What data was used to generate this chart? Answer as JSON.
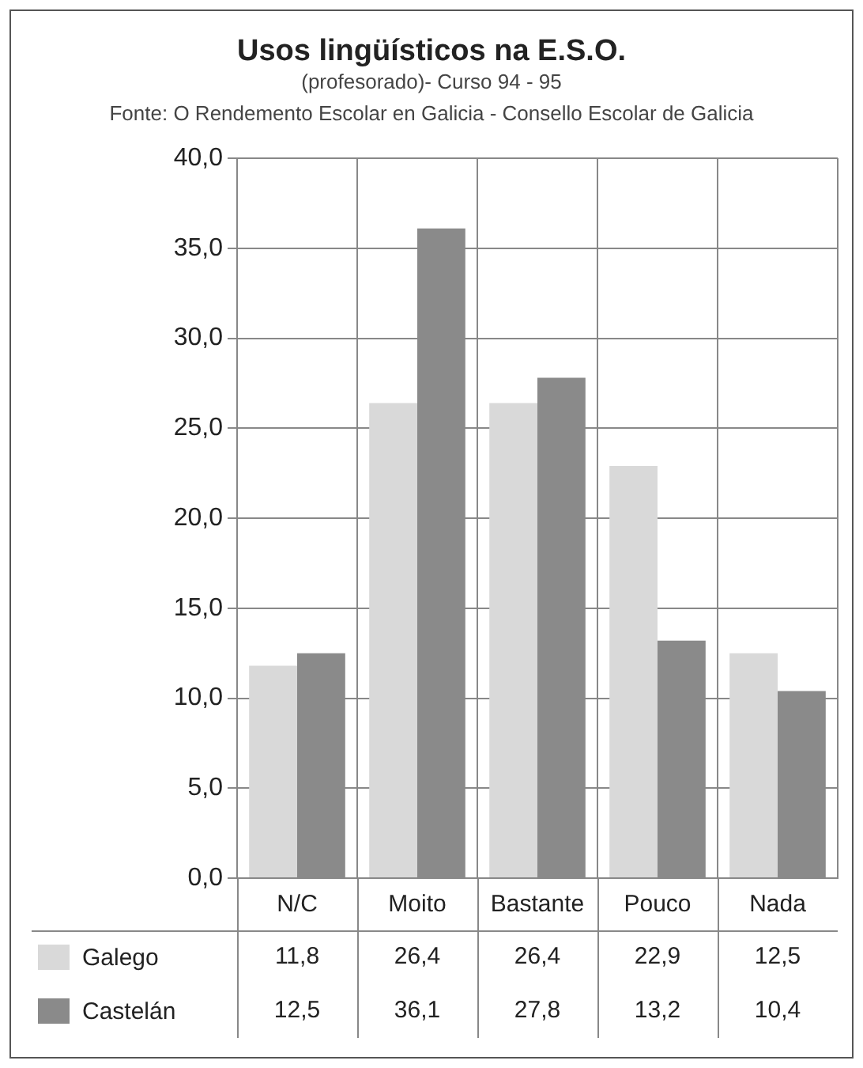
{
  "chart_data": {
    "type": "bar",
    "title": "Usos lingüísticos na E.S.O.",
    "subtitle": "(profesorado)- Curso 94 - 95",
    "annotations": [
      "Fonte: O Rendemento Escolar en Galicia - Consello Escolar de Galicia"
    ],
    "categories": [
      "N/C",
      "Moito",
      "Bastante",
      "Pouco",
      "Nada"
    ],
    "series": [
      {
        "name": "Galego",
        "color": "#d9d9d9",
        "values": [
          11.8,
          26.4,
          26.4,
          22.9,
          12.5
        ],
        "value_labels": [
          "11,8",
          "26,4",
          "26,4",
          "22,9",
          "12,5"
        ]
      },
      {
        "name": "Castelán",
        "color": "#8a8a8a",
        "values": [
          12.5,
          36.1,
          27.8,
          13.2,
          10.4
        ],
        "value_labels": [
          "12,5",
          "36,1",
          "27,8",
          "13,2",
          "10,4"
        ]
      }
    ],
    "ylim": [
      0,
      40
    ],
    "yticks": [
      {
        "value": 0,
        "label": "0,0"
      },
      {
        "value": 5,
        "label": "5,0"
      },
      {
        "value": 10,
        "label": "10,0"
      },
      {
        "value": 15,
        "label": "15,0"
      },
      {
        "value": 20,
        "label": "20,0"
      },
      {
        "value": 25,
        "label": "25,0"
      },
      {
        "value": 30,
        "label": "30,0"
      },
      {
        "value": 35,
        "label": "35,0"
      },
      {
        "value": 40,
        "label": "40,0"
      }
    ],
    "grid": true,
    "legend": "bottom left"
  }
}
